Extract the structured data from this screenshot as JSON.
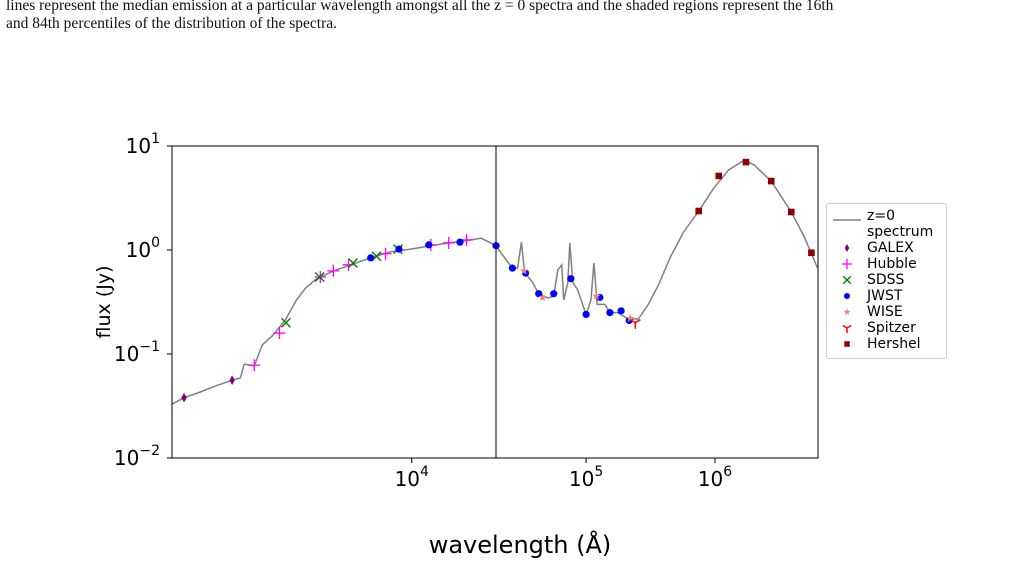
{
  "caption": [
    "lines represent the median emission at a particular wavelength amongst all the z = 0 spectra and the shaded regions represent the 16th",
    "and 84th percentiles of the distribution of the spectra."
  ],
  "chart_data": {
    "type": "scatter",
    "xlabel": "wavelength (Å)",
    "ylabel": "flux (Jy)",
    "log_x": true,
    "log_y": true,
    "xlim": [
      1390,
      6300000
    ],
    "xbreak": 20000,
    "ylim": [
      0.01,
      10
    ],
    "xticks": [
      {
        "value": 10000,
        "label": "10",
        "exponent": "4"
      },
      {
        "value": 100000,
        "label": "10",
        "exponent": "5"
      },
      {
        "value": 1000000,
        "label": "10",
        "exponent": "6"
      }
    ],
    "yticks": [
      {
        "value": 0.01,
        "label": "10",
        "exponent": "−2"
      },
      {
        "value": 0.1,
        "label": "10",
        "exponent": "−1"
      },
      {
        "value": 1,
        "label": "10",
        "exponent": "0"
      },
      {
        "value": 10,
        "label": "10",
        "exponent": "1"
      }
    ],
    "series": [
      {
        "name": "z=0 spectrum",
        "color": "#808080",
        "marker": "line",
        "x": [
          1390,
          1535,
          1750,
          1980,
          2280,
          2440,
          2520,
          2735,
          2920,
          3170,
          3530,
          3870,
          4170,
          4530,
          5120,
          6040,
          7130,
          8400,
          9910,
          12700,
          16300,
          17700,
          20000,
          22400,
          26800,
          29400,
          31500,
          33300,
          38400,
          42900,
          50400,
          56100,
          60300,
          64700,
          67100,
          72100,
          74800,
          78900,
          86300,
          100000,
          109000,
          115000,
          122000,
          140000,
          153000,
          177000,
          212000,
          254000,
          304000,
          364000,
          452000,
          571000,
          748000,
          980000,
          1280000,
          1680000,
          2010000,
          2730000,
          3910000,
          4940000,
          6250000
        ],
        "values": [
          0.033,
          0.038,
          0.043,
          0.049,
          0.056,
          0.059,
          0.08,
          0.077,
          0.122,
          0.149,
          0.212,
          0.33,
          0.43,
          0.52,
          0.61,
          0.72,
          0.84,
          0.96,
          1.02,
          1.14,
          1.25,
          1.3,
          1.1,
          0.9,
          0.67,
          0.67,
          1.19,
          0.61,
          0.49,
          0.38,
          0.345,
          0.36,
          0.64,
          0.72,
          0.33,
          0.48,
          1.17,
          0.49,
          0.41,
          0.24,
          0.33,
          0.75,
          0.3,
          0.3,
          0.25,
          0.25,
          0.217,
          0.217,
          0.3,
          0.46,
          0.86,
          1.49,
          2.37,
          3.95,
          5.9,
          7.3,
          6.6,
          4.6,
          2.32,
          1.33,
          0.67
        ]
      },
      {
        "name": "GALEX",
        "color": "#800080",
        "marker": "thin-diamond",
        "x": [
          1535,
          2280
        ],
        "values": [
          0.038,
          0.056
        ]
      },
      {
        "name": "Hubble",
        "color": "#ff00ff",
        "marker": "plus",
        "x": [
          2735,
          3365,
          4710,
          5245,
          5940,
          8060,
          11700,
          13550,
          15700
        ],
        "values": [
          0.078,
          0.159,
          0.55,
          0.63,
          0.72,
          0.92,
          1.12,
          1.17,
          1.25
        ]
      },
      {
        "name": "SDSS",
        "color": "#008000",
        "marker": "x",
        "x": [
          3551,
          4686,
          6165,
          7481,
          8931
        ],
        "values": [
          0.2,
          0.55,
          0.75,
          0.87,
          1.02
        ]
      },
      {
        "name": "JWST",
        "color": "#0000ff",
        "marker": "circle",
        "x": [
          7130,
          9000,
          11500,
          14870,
          20000,
          26800,
          33900,
          42900,
          56100,
          76200,
          100000,
          128000,
          153000,
          187000,
          216000
        ],
        "values": [
          0.84,
          1.02,
          1.12,
          1.19,
          1.1,
          0.67,
          0.6,
          0.38,
          0.38,
          0.53,
          0.24,
          0.35,
          0.25,
          0.26,
          0.21
        ]
      },
      {
        "name": "WISE",
        "color": "#f08080",
        "marker": "star",
        "x": [
          33000,
          46000,
          120000,
          220000
        ],
        "values": [
          0.63,
          0.35,
          0.36,
          0.22
        ]
      },
      {
        "name": "Spitzer",
        "color": "#ff0000",
        "marker": "tri-down",
        "x": [
          241000
        ],
        "values": [
          0.2
        ]
      },
      {
        "name": "Hershel",
        "color": "#8b0000",
        "marker": "square",
        "x": [
          748000,
          1070000,
          1740000,
          2730000,
          3910000,
          5600000
        ],
        "values": [
          2.37,
          5.15,
          7.0,
          4.6,
          2.32,
          0.94
        ]
      }
    ]
  }
}
